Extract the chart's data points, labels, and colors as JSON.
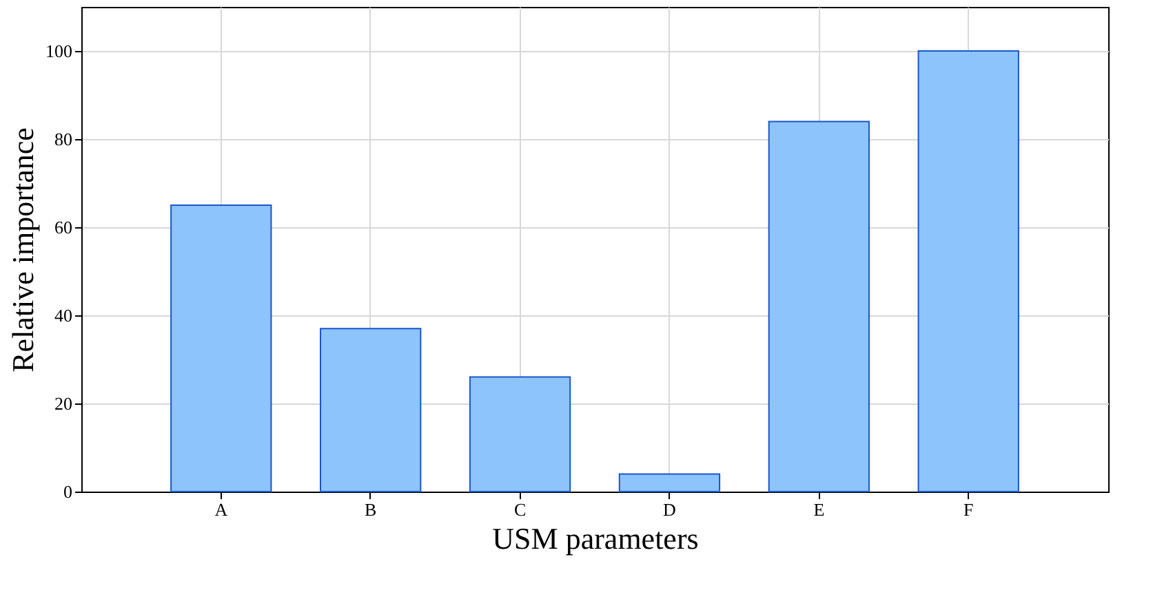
{
  "chart_data": {
    "type": "bar",
    "xlabel": "USM parameters",
    "ylabel": "Relative importance",
    "categories": [
      "A",
      "B",
      "C",
      "D",
      "E",
      "F"
    ],
    "values": [
      65,
      37,
      26,
      4,
      84,
      100
    ],
    "color": "#8cc4fb",
    "ylim": [
      0,
      110
    ],
    "yticks": [
      0,
      20,
      40,
      60,
      80,
      100
    ],
    "grid": true
  }
}
